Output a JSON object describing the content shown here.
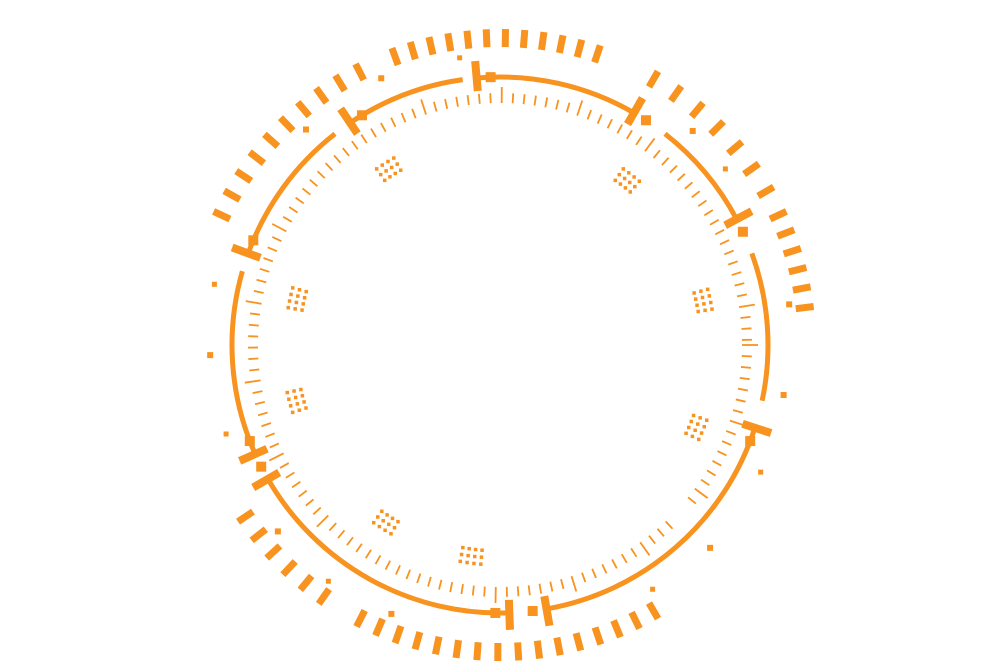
{
  "graphic": {
    "name": "circular-hud-ring",
    "accent_color": "#F7931E",
    "background_color": "#FFFFFF"
  }
}
